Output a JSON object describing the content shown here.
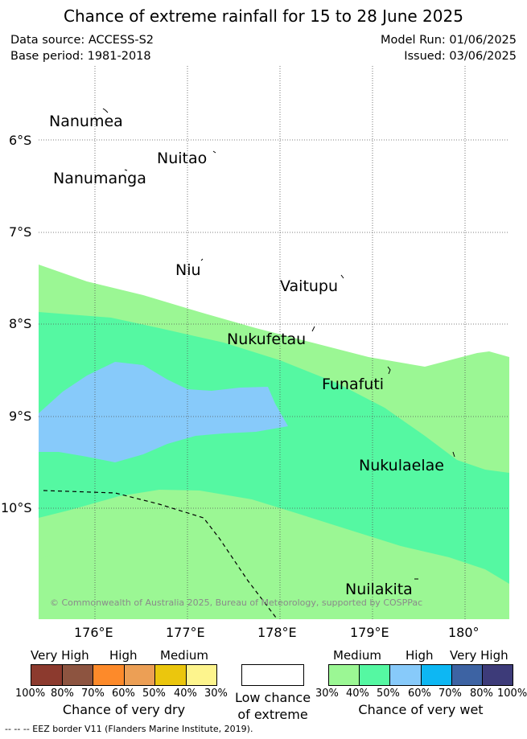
{
  "header": {
    "title": "Chance of extreme rainfall for 15 to 28 June 2025",
    "data_source": "Data source: ACCESS-S2",
    "base_period": "Base period: 1981-2018",
    "model_run": "Model Run: 01/06/2025",
    "issued": "Issued: 03/06/2025"
  },
  "map": {
    "islands": [
      "Nanumea",
      "Nuitao",
      "Nanumanga",
      "Niu",
      "Vaitupu",
      "Nukufetau",
      "Funafuti",
      "Nukulaelae",
      "Nuilakita"
    ],
    "lat_labels": [
      "6°S",
      "7°S",
      "8°S",
      "9°S",
      "10°S"
    ],
    "lon_labels": [
      "176°E",
      "177°E",
      "178°E",
      "179°E",
      "180°"
    ],
    "copyright": "© Commonwealth of Australia 2025, Bureau of Meteorology, supported by COSPPac",
    "zone_colors": {
      "wet_medium": "#9bf794",
      "wet_medium_high": "#55f8a2",
      "wet_high": "#87cafa"
    }
  },
  "legend": {
    "dry": {
      "headers": [
        "Very High",
        "High",
        "Medium"
      ],
      "colors": [
        "#8c3a2e",
        "#8d5440",
        "#fd8a2a",
        "#ec9f55",
        "#ebc60d",
        "#fdf48d"
      ],
      "ticks": [
        "100%",
        "80%",
        "70%",
        "60%",
        "50%",
        "40%",
        "30%"
      ],
      "title": "Chance of very dry"
    },
    "low": {
      "title_line1": "Low chance",
      "title_line2": "of extreme"
    },
    "wet": {
      "headers": [
        "Medium",
        "High",
        "Very High"
      ],
      "colors": [
        "#9bf794",
        "#55f8a2",
        "#87cafa",
        "#0db7f3",
        "#3d63a3",
        "#3d3b79"
      ],
      "ticks": [
        "30%",
        "40%",
        "50%",
        "60%",
        "70%",
        "80%",
        "100%"
      ],
      "title": "Chance of very wet"
    },
    "eez": "--  --  -- EEZ border V11 (Flanders Marine Institute, 2019)."
  }
}
